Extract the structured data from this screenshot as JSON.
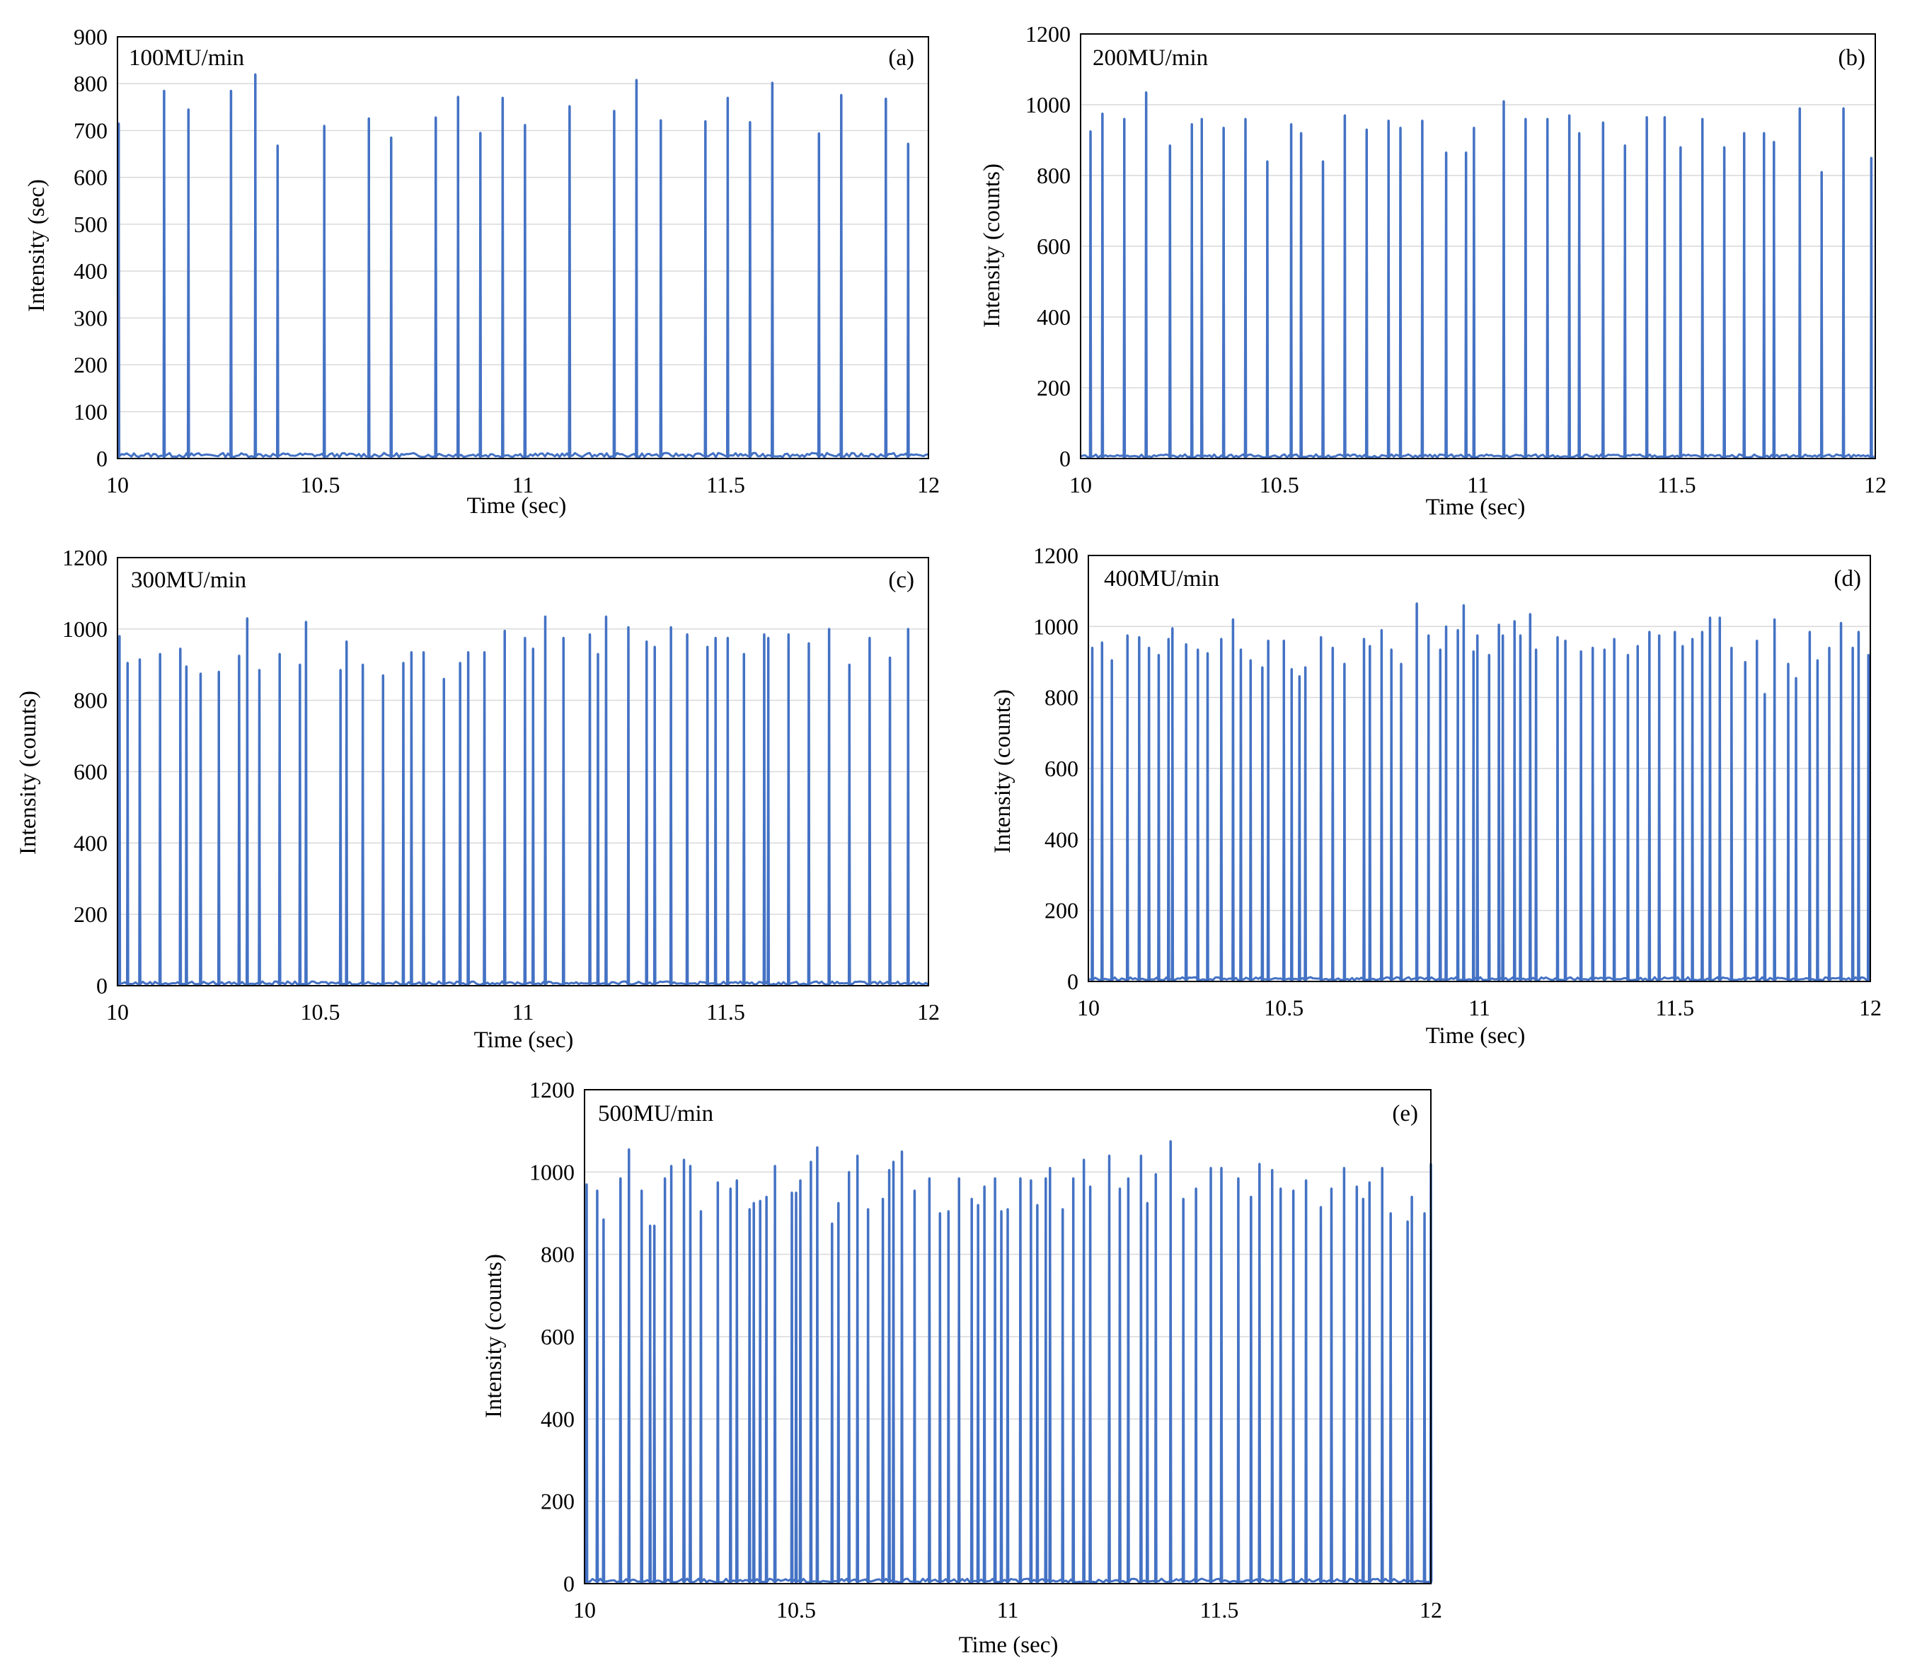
{
  "figure": {
    "description_label": "Intensity vs time at five dose rates"
  },
  "chart_data": [
    {
      "type": "line",
      "id": "a",
      "dose_rate_label": "100MU/min",
      "panel_letter": "(a)",
      "xlabel": "Time (sec)",
      "ylabel": "Intensity (sec)",
      "xlim": [
        10,
        12
      ],
      "ylim": [
        0,
        900
      ],
      "xticks": [
        10,
        10.5,
        11,
        11.5,
        12
      ],
      "xtick_labels": [
        "10",
        "10.5",
        "11",
        "11.5",
        "12"
      ],
      "yticks": [
        0,
        100,
        200,
        300,
        400,
        500,
        600,
        700,
        800,
        900
      ],
      "ytick_labels": [
        "0",
        "100",
        "200",
        "300",
        "400",
        "500",
        "600",
        "700",
        "800",
        "900"
      ],
      "grid": true,
      "color": "#4472C4",
      "peaks_x": [
        10.003,
        10.115,
        10.175,
        10.28,
        10.34,
        10.395,
        10.51,
        10.62,
        10.675,
        10.785,
        10.84,
        10.895,
        10.95,
        11.005,
        11.115,
        11.225,
        11.28,
        11.34,
        11.45,
        11.505,
        11.56,
        11.615,
        11.73,
        11.785,
        11.895,
        11.95
      ],
      "peaks_y": [
        715,
        785,
        745,
        785,
        820,
        668,
        710,
        726,
        685,
        728,
        772,
        695,
        770,
        712,
        752,
        742,
        808,
        722,
        720,
        770,
        718,
        802,
        694,
        776,
        768,
        672
      ]
    },
    {
      "type": "line",
      "id": "b",
      "dose_rate_label": "200MU/min",
      "panel_letter": "(b)",
      "xlabel": "Time (sec)",
      "ylabel": "Intensity (counts)",
      "xlim": [
        10,
        12
      ],
      "ylim": [
        0,
        1200
      ],
      "xticks": [
        10,
        10.5,
        11,
        11.5,
        12
      ],
      "xtick_labels": [
        "10",
        "10.5",
        "11",
        "11.5",
        "12"
      ],
      "yticks": [
        0,
        200,
        400,
        600,
        800,
        1000,
        1200
      ],
      "ytick_labels": [
        "0",
        "200",
        "400",
        "600",
        "800",
        "1000",
        "1200"
      ],
      "grid": true,
      "color": "#4472C4",
      "peaks_x": [
        10.025,
        10.055,
        10.11,
        10.165,
        10.225,
        10.28,
        10.305,
        10.36,
        10.415,
        10.47,
        10.53,
        10.555,
        10.61,
        10.665,
        10.72,
        10.775,
        10.805,
        10.86,
        10.92,
        10.97,
        10.99,
        11.065,
        11.12,
        11.175,
        11.23,
        11.255,
        11.315,
        11.37,
        11.425,
        11.47,
        11.51,
        11.565,
        11.62,
        11.67,
        11.72,
        11.745,
        11.81,
        11.865,
        11.92,
        11.99
      ],
      "peaks_y": [
        925,
        975,
        960,
        1035,
        885,
        945,
        960,
        935,
        960,
        840,
        945,
        920,
        840,
        970,
        930,
        955,
        935,
        955,
        865,
        865,
        935,
        1010,
        960,
        960,
        970,
        920,
        950,
        885,
        965,
        965,
        880,
        960,
        880,
        920,
        920,
        895,
        990,
        810,
        990,
        850
      ]
    },
    {
      "type": "line",
      "id": "c",
      "dose_rate_label": "300MU/min",
      "panel_letter": "(c)",
      "xlabel": "Time (sec)",
      "ylabel": "Intensity (counts)",
      "xlim": [
        10,
        12
      ],
      "ylim": [
        0,
        1200
      ],
      "xticks": [
        10,
        10.5,
        11,
        11.5,
        12
      ],
      "xtick_labels": [
        "10",
        "10.5",
        "11",
        "11.5",
        "12"
      ],
      "yticks": [
        0,
        200,
        400,
        600,
        800,
        1000,
        1200
      ],
      "ytick_labels": [
        "0",
        "200",
        "400",
        "600",
        "800",
        "1000",
        "1200"
      ],
      "grid": true,
      "color": "#4472C4",
      "peaks_x": [
        10.005,
        10.025,
        10.055,
        10.105,
        10.155,
        10.17,
        10.205,
        10.25,
        10.3,
        10.32,
        10.35,
        10.4,
        10.45,
        10.465,
        10.55,
        10.565,
        10.605,
        10.655,
        10.705,
        10.725,
        10.755,
        10.805,
        10.845,
        10.865,
        10.905,
        10.955,
        11.005,
        11.025,
        11.055,
        11.1,
        11.165,
        11.185,
        11.205,
        11.26,
        11.305,
        11.325,
        11.365,
        11.405,
        11.455,
        11.475,
        11.505,
        11.545,
        11.595,
        11.605,
        11.655,
        11.705,
        11.755,
        11.805,
        11.855,
        11.905,
        11.95
      ],
      "peaks_y": [
        980,
        905,
        915,
        930,
        945,
        895,
        875,
        880,
        925,
        1030,
        885,
        930,
        900,
        1020,
        885,
        965,
        900,
        870,
        905,
        935,
        935,
        860,
        905,
        935,
        935,
        995,
        975,
        945,
        1035,
        975,
        985,
        930,
        1035,
        1005,
        965,
        950,
        1005,
        985,
        950,
        975,
        975,
        930,
        985,
        975,
        985,
        960,
        1000,
        900,
        975,
        920,
        1000
      ]
    },
    {
      "type": "line",
      "id": "d",
      "dose_rate_label": "400MU/min",
      "panel_letter": "(d)",
      "xlabel": "Time (sec)",
      "ylabel": "Intensity (counts)",
      "xlim": [
        10,
        12
      ],
      "ylim": [
        0,
        1200
      ],
      "xticks": [
        10,
        10.5,
        11,
        11.5,
        12
      ],
      "xtick_labels": [
        "10",
        "10.5",
        "11",
        "11.5",
        "12"
      ],
      "yticks": [
        0,
        200,
        400,
        600,
        800,
        1000,
        1200
      ],
      "ytick_labels": [
        "0",
        "200",
        "400",
        "600",
        "800",
        "1000",
        "1200"
      ],
      "grid": true,
      "color": "#4472C4",
      "peaks_x": [
        10.01,
        10.035,
        10.06,
        10.1,
        10.13,
        10.155,
        10.18,
        10.205,
        10.215,
        10.25,
        10.28,
        10.305,
        10.34,
        10.37,
        10.39,
        10.415,
        10.445,
        10.46,
        10.5,
        10.52,
        10.54,
        10.555,
        10.595,
        10.625,
        10.655,
        10.705,
        10.72,
        10.75,
        10.775,
        10.8,
        10.84,
        10.87,
        10.9,
        10.915,
        10.945,
        10.96,
        10.985,
        10.995,
        11.025,
        11.05,
        11.06,
        11.09,
        11.105,
        11.13,
        11.145,
        11.2,
        11.22,
        11.26,
        11.29,
        11.32,
        11.345,
        11.38,
        11.405,
        11.435,
        11.46,
        11.5,
        11.52,
        11.545,
        11.57,
        11.59,
        11.615,
        11.645,
        11.68,
        11.71,
        11.73,
        11.755,
        11.79,
        11.81,
        11.845,
        11.865,
        11.895,
        11.925,
        11.955,
        11.97,
        11.995
      ],
      "peaks_y": [
        940,
        955,
        905,
        975,
        970,
        940,
        920,
        965,
        995,
        950,
        935,
        925,
        965,
        1020,
        935,
        905,
        885,
        960,
        960,
        880,
        860,
        885,
        970,
        940,
        895,
        965,
        945,
        990,
        935,
        895,
        1065,
        975,
        935,
        1000,
        990,
        1060,
        930,
        975,
        920,
        1005,
        975,
        1015,
        975,
        1035,
        935,
        970,
        960,
        930,
        940,
        935,
        965,
        920,
        945,
        985,
        975,
        985,
        945,
        965,
        985,
        1025,
        1025,
        940,
        900,
        960,
        810,
        1020,
        895,
        855,
        985,
        905,
        940,
        1010,
        940,
        985,
        920
      ]
    },
    {
      "type": "line",
      "id": "e",
      "dose_rate_label": "500MU/min",
      "panel_letter": "(e)",
      "xlabel": "Time (sec)",
      "ylabel": "Intensity (counts)",
      "xlim": [
        10,
        12
      ],
      "ylim": [
        0,
        1200
      ],
      "xticks": [
        10,
        10.5,
        11,
        11.5,
        12
      ],
      "xtick_labels": [
        "10",
        "10.5",
        "11",
        "11.5",
        "12"
      ],
      "yticks": [
        0,
        200,
        400,
        600,
        800,
        1000,
        1200
      ],
      "ytick_labels": [
        "0",
        "200",
        "400",
        "600",
        "800",
        "1000",
        "1200"
      ],
      "grid": true,
      "color": "#4472C4",
      "peaks_x": [
        10.005,
        10.03,
        10.045,
        10.085,
        10.105,
        10.135,
        10.155,
        10.165,
        10.19,
        10.205,
        10.235,
        10.25,
        10.275,
        10.315,
        10.345,
        10.36,
        10.39,
        10.4,
        10.415,
        10.43,
        10.45,
        10.49,
        10.5,
        10.51,
        10.535,
        10.55,
        10.585,
        10.6,
        10.625,
        10.645,
        10.67,
        10.705,
        10.72,
        10.73,
        10.75,
        10.78,
        10.815,
        10.84,
        10.86,
        10.885,
        10.915,
        10.93,
        10.945,
        10.97,
        10.985,
        11.0,
        11.03,
        11.055,
        11.07,
        11.09,
        11.1,
        11.13,
        11.155,
        11.18,
        11.195,
        11.24,
        11.265,
        11.285,
        11.315,
        11.33,
        11.35,
        11.385,
        11.415,
        11.445,
        11.48,
        11.505,
        11.545,
        11.575,
        11.595,
        11.625,
        11.645,
        11.675,
        11.705,
        11.74,
        11.765,
        11.795,
        11.825,
        11.84,
        11.855,
        11.885,
        11.905,
        11.945,
        11.955,
        11.985,
        12.0
      ],
      "peaks_y": [
        970,
        955,
        885,
        985,
        1055,
        955,
        870,
        870,
        985,
        1015,
        1030,
        1015,
        905,
        975,
        960,
        980,
        910,
        925,
        930,
        940,
        1015,
        950,
        950,
        980,
        1025,
        1060,
        875,
        925,
        1000,
        1040,
        910,
        935,
        1005,
        1025,
        1050,
        955,
        985,
        900,
        905,
        985,
        935,
        920,
        965,
        985,
        905,
        910,
        985,
        980,
        920,
        985,
        1010,
        910,
        985,
        1030,
        965,
        1040,
        960,
        985,
        1040,
        925,
        995,
        1075,
        935,
        960,
        1010,
        1010,
        985,
        940,
        1020,
        1005,
        960,
        955,
        980,
        915,
        960,
        1010,
        965,
        935,
        975,
        1010,
        900,
        880,
        940,
        900,
        1020
      ]
    }
  ]
}
